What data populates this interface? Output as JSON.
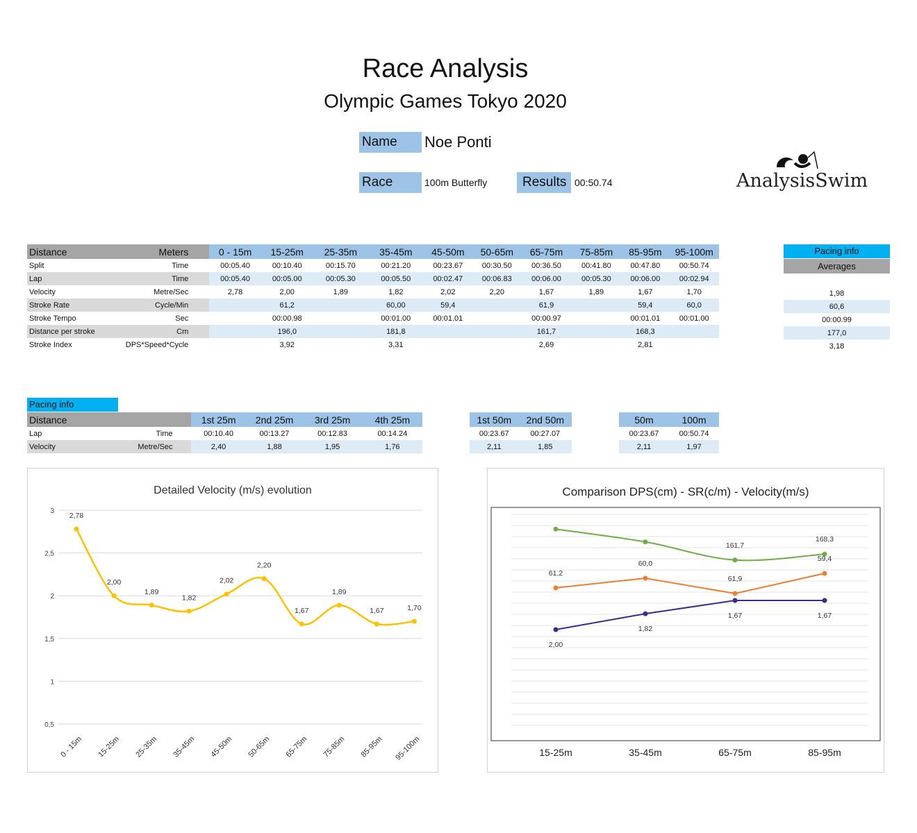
{
  "header": {
    "title": "Race Analysis",
    "subtitle": "Olympic Games Tokyo 2020",
    "name_label": "Name",
    "name_value": "Noe Ponti",
    "race_label": "Race",
    "race_value": "100m Butterfly",
    "results_label": "Results",
    "results_value": "00:50.74",
    "logo_text": "AnalysisSwim"
  },
  "main_table": {
    "header": [
      "Distance",
      "Meters",
      "0 - 15m",
      "15-25m",
      "25-35m",
      "35-45m",
      "45-50m",
      "50-65m",
      "65-75m",
      "75-85m",
      "85-95m",
      "95-100m"
    ],
    "rows": [
      [
        "Split",
        "Time",
        "00:05.40",
        "00:10.40",
        "00:15.70",
        "00:21.20",
        "00:23.67",
        "00:30.50",
        "00:36.50",
        "00:41.80",
        "00:47.80",
        "00:50.74"
      ],
      [
        "Lap",
        "Time",
        "00:05.40",
        "00:05.00",
        "00:05.30",
        "00:05.50",
        "00:02.47",
        "00:06.83",
        "00:06.00",
        "00:05.30",
        "00:06.00",
        "00:02.94"
      ],
      [
        "Velocity",
        "Metre/Sec",
        "2,78",
        "2,00",
        "1,89",
        "1,82",
        "2,02",
        "2,20",
        "1,67",
        "1,89",
        "1,67",
        "1,70"
      ],
      [
        "Stroke Rate",
        "Cycle/Min",
        "",
        "61,2",
        "",
        "60,00",
        "59,4",
        "",
        "61,9",
        "",
        "59,4",
        "60,0"
      ],
      [
        "Stroke Tempo",
        "Sec",
        "",
        "00:00.98",
        "",
        "00:01.00",
        "00:01.01",
        "",
        "00:00.97",
        "",
        "00:01.01",
        "00:01.00"
      ],
      [
        "Distance per stroke",
        "Cm",
        "",
        "196,0",
        "",
        "181,8",
        "",
        "",
        "161,7",
        "",
        "168,3",
        ""
      ],
      [
        "Stroke Index",
        "DPS*Speed*Cycle",
        "",
        "3,92",
        "",
        "3,31",
        "",
        "",
        "2,69",
        "",
        "2,81",
        ""
      ]
    ]
  },
  "averages": {
    "title": "Pacing info",
    "subtitle": "Averages",
    "values": [
      "",
      "",
      "1,98",
      "60,6",
      "00:00.99",
      "177,0",
      "3,18"
    ]
  },
  "pacing": {
    "title": "Pacing info",
    "header": [
      "Distance",
      "",
      "1st 25m",
      "2nd 25m",
      "3rd 25m",
      "4th 25m"
    ],
    "rows": [
      [
        "Lap",
        "Time",
        "00:10.40",
        "00:13.27",
        "00:12.83",
        "00:14.24"
      ],
      [
        "Velocity",
        "Metre/Sec",
        "2,40",
        "1,88",
        "1,95",
        "1,76"
      ]
    ],
    "halves_header": [
      "1st 50m",
      "2nd 50m"
    ],
    "halves_rows": [
      [
        "00:23.67",
        "00:27.07"
      ],
      [
        "2,11",
        "1,85"
      ]
    ],
    "totals_header": [
      "50m",
      "100m"
    ],
    "totals_rows": [
      [
        "00:23.67",
        "00:50.74"
      ],
      [
        "2,11",
        "1,97"
      ]
    ]
  },
  "chart_data": [
    {
      "type": "line",
      "title": "Detailed Velocity (m/s)  evolution",
      "categories": [
        "0 - 15m",
        "15-25m",
        "25-35m",
        "35-45m",
        "45-50m",
        "50-65m",
        "65-75m",
        "75-85m",
        "85-95m",
        "95-100m"
      ],
      "values": [
        2.78,
        2.0,
        1.89,
        1.82,
        2.02,
        2.2,
        1.67,
        1.89,
        1.67,
        1.7
      ],
      "data_labels": [
        "2,78",
        "2,00",
        "1,89",
        "1,82",
        "2,02",
        "2,20",
        "1,67",
        "1,89",
        "1,67",
        "1,70"
      ],
      "yticks": [
        "0,5",
        "1",
        "1,5",
        "2",
        "2,5",
        "3"
      ],
      "ylim": [
        0.5,
        3
      ],
      "color": "#ffc000",
      "smooth": true,
      "grid": true
    },
    {
      "type": "line",
      "title": "Comparison DPS(cm) - SR(c/m) - Velocity(m/s)",
      "categories": [
        "15-25m",
        "35-45m",
        "65-75m",
        "85-95m"
      ],
      "series": [
        {
          "values": [
            196.0,
            181.8,
            161.7,
            168.3
          ],
          "labels": [
            "",
            "",
            "161,7",
            "168,3"
          ],
          "color": "#70ad47"
        },
        {
          "values": [
            61.2,
            60.0,
            61.9,
            59.4
          ],
          "labels": [
            "61,2",
            "60,0",
            "61,9",
            "59,4"
          ],
          "color": "#ed7d31"
        },
        {
          "values": [
            2.0,
            1.82,
            1.67,
            1.67
          ],
          "labels": [
            "2,00",
            "1,82",
            "1,67",
            "1,67"
          ],
          "color": "#3f2a8c"
        }
      ],
      "grid": true
    }
  ]
}
